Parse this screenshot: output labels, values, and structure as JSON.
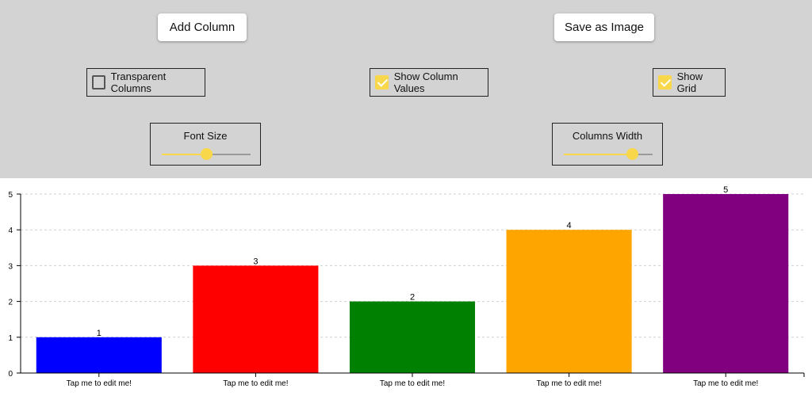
{
  "controls": {
    "add_column_label": "Add Column",
    "save_image_label": "Save as Image",
    "transparent_columns": {
      "label": "Transparent Columns",
      "checked": false
    },
    "show_column_values": {
      "label": "Show Column Values",
      "checked": true
    },
    "show_grid": {
      "label": "Show Grid",
      "checked": true
    },
    "font_size": {
      "label": "Font Size",
      "value_fraction": 0.5
    },
    "columns_width": {
      "label": "Columns Width",
      "value_fraction": 0.77
    },
    "accent_color": "#f8d84a"
  },
  "chart_data": {
    "type": "bar",
    "categories": [
      "Tap me to edit me!",
      "Tap me to edit me!",
      "Tap me to edit me!",
      "Tap me to edit me!",
      "Tap me to edit me!"
    ],
    "values": [
      1,
      3,
      2,
      4,
      5
    ],
    "colors": [
      "#0000ff",
      "#ff0000",
      "#008000",
      "#ffa500",
      "#800080"
    ],
    "ylim": [
      0,
      5
    ],
    "yticks": [
      0,
      1,
      2,
      3,
      4,
      5
    ],
    "grid": true,
    "show_values": true
  }
}
